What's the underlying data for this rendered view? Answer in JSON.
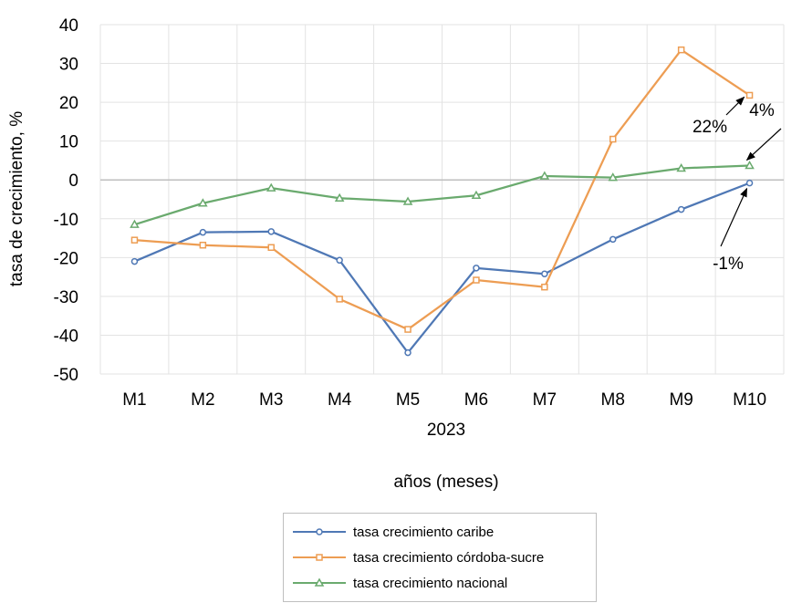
{
  "chart_data": {
    "type": "line",
    "title": "",
    "xlabel": "años (meses)",
    "ylabel": "tasa de crecimiento, %",
    "x_group_label": "2023",
    "categories": [
      "M1",
      "M2",
      "M3",
      "M4",
      "M5",
      "M6",
      "M7",
      "M8",
      "M9",
      "M10"
    ],
    "ylim": [
      -50,
      40
    ],
    "yticks": [
      "40",
      "30",
      "20",
      "10",
      "0",
      "-10",
      "-20",
      "-30",
      "-40",
      "-50"
    ],
    "grid": true,
    "legend_position": "bottom",
    "series": [
      {
        "name": "tasa crecimiento caribe",
        "color": "#4f78b5",
        "marker": "circle",
        "values": [
          -21,
          -13.5,
          -13.3,
          -20.7,
          -44.5,
          -22.7,
          -24.2,
          -15.3,
          -7.6,
          -0.8
        ]
      },
      {
        "name": "tasa crecimiento córdoba-sucre",
        "color": "#ed9d53",
        "marker": "square",
        "values": [
          -15.5,
          -16.8,
          -17.4,
          -30.7,
          -38.5,
          -25.8,
          -27.6,
          10.5,
          33.5,
          21.8
        ]
      },
      {
        "name": "tasa crecimiento nacional",
        "color": "#6aaa6e",
        "marker": "triangle",
        "values": [
          -11.5,
          -6,
          -2.1,
          -4.7,
          -5.6,
          -4,
          1,
          0.6,
          3,
          3.7
        ]
      }
    ],
    "annotations": [
      {
        "text": "22%",
        "series": 1,
        "index": 9
      },
      {
        "text": "4%",
        "series": 2,
        "index": 9
      },
      {
        "text": "-1%",
        "series": 0,
        "index": 9
      }
    ]
  }
}
